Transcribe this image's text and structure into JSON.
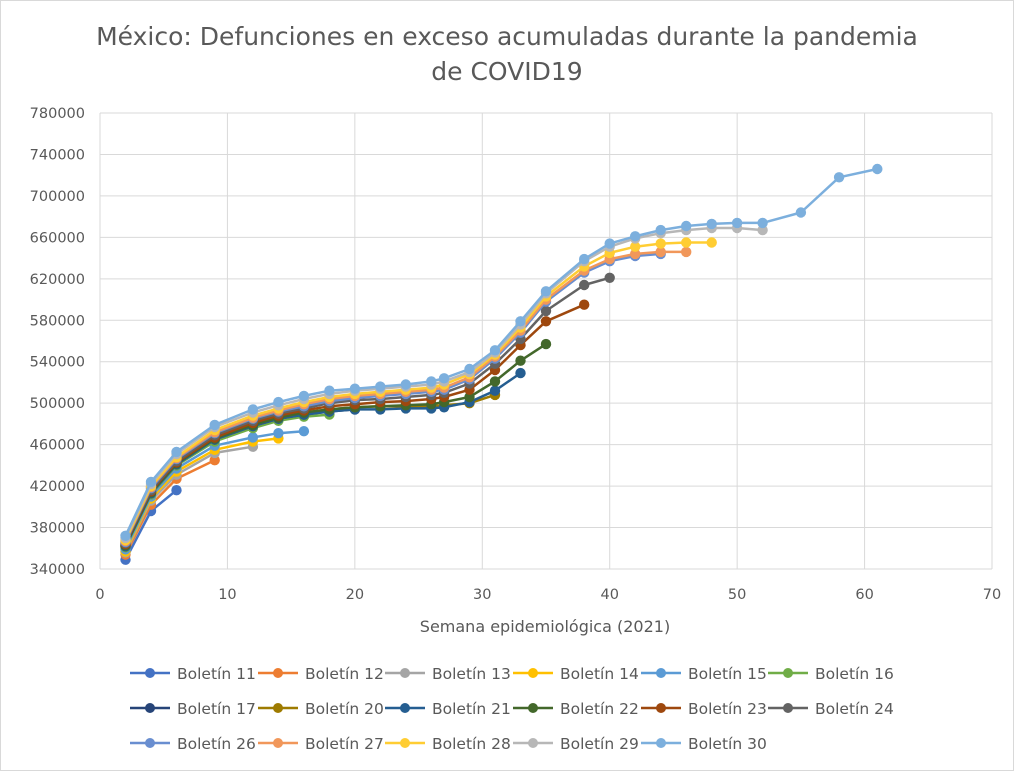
{
  "chart_data": {
    "type": "line",
    "title_line1": "México: Defunciones en exceso acumuladas durante la pandemia",
    "title_line2": "de COVID19",
    "xlabel": "Semana epidemiológica (2021)",
    "ylabel": "",
    "xlim": [
      0,
      70
    ],
    "ylim": [
      340000,
      780000
    ],
    "x_ticks": [
      "0",
      "10",
      "20",
      "30",
      "40",
      "50",
      "60",
      "70"
    ],
    "y_ticks": [
      "340000",
      "380000",
      "420000",
      "460000",
      "500000",
      "540000",
      "580000",
      "620000",
      "660000",
      "700000",
      "740000",
      "780000"
    ],
    "grid": true,
    "legend_position": "bottom",
    "series": [
      {
        "name": "Boletín 11",
        "color": "#4472c4",
        "x": [
          2,
          4,
          6
        ],
        "y": [
          349000,
          396000,
          416000
        ]
      },
      {
        "name": "Boletín 12",
        "color": "#ed7d31",
        "x": [
          2,
          4,
          6,
          9
        ],
        "y": [
          354000,
          402000,
          427000,
          445000
        ]
      },
      {
        "name": "Boletín 13",
        "color": "#a5a5a5",
        "x": [
          2,
          4,
          6,
          9,
          12
        ],
        "y": [
          356000,
          406000,
          431000,
          452000,
          458000
        ]
      },
      {
        "name": "Boletín 14",
        "color": "#ffc000",
        "x": [
          2,
          4,
          6,
          9,
          12,
          14
        ],
        "y": [
          357000,
          408000,
          434000,
          455000,
          463000,
          466000
        ]
      },
      {
        "name": "Boletín 15",
        "color": "#5b9bd5",
        "x": [
          2,
          4,
          6,
          9,
          12,
          14,
          16
        ],
        "y": [
          359000,
          410000,
          437000,
          459000,
          467000,
          471000,
          473000
        ]
      },
      {
        "name": "Boletín 16",
        "color": "#70ad47",
        "x": [
          2,
          4,
          6,
          9,
          12,
          14,
          16,
          18
        ],
        "y": [
          361000,
          412000,
          440000,
          463000,
          476000,
          483000,
          487000,
          489000
        ]
      },
      {
        "name": "Boletín 17",
        "color": "#264478",
        "x": [
          2,
          4,
          6,
          9,
          12,
          14,
          16,
          18,
          20
        ],
        "y": [
          362000,
          413000,
          441000,
          465000,
          478000,
          485000,
          489000,
          492000,
          494000
        ]
      },
      {
        "name": "Boletín 20",
        "color": "#9e7b00",
        "x": [
          2,
          4,
          6,
          9,
          12,
          14,
          16,
          18,
          20,
          22,
          24,
          26,
          27,
          29,
          31
        ],
        "y": [
          363000,
          414000,
          442000,
          466000,
          479000,
          486000,
          491000,
          494000,
          496000,
          497000,
          497000,
          497000,
          498000,
          500000,
          508000
        ]
      },
      {
        "name": "Boletín 21",
        "color": "#255e91",
        "x": [
          2,
          4,
          6,
          9,
          12,
          14,
          16,
          18,
          20,
          22,
          24,
          26,
          27,
          29,
          31,
          33
        ],
        "y": [
          362000,
          413000,
          441000,
          465000,
          478000,
          485000,
          489000,
          492000,
          494000,
          494000,
          495000,
          495000,
          496000,
          501000,
          512000,
          529000
        ]
      },
      {
        "name": "Boletín 22",
        "color": "#43682b",
        "x": [
          2,
          4,
          6,
          9,
          12,
          14,
          16,
          18,
          20,
          22,
          24,
          26,
          27,
          29,
          31,
          33,
          35
        ],
        "y": [
          363000,
          414000,
          442000,
          466000,
          479000,
          486000,
          491000,
          494000,
          496000,
          497000,
          498000,
          499000,
          501000,
          506000,
          521000,
          541000,
          557000
        ]
      },
      {
        "name": "Boletín 23",
        "color": "#9e480e",
        "x": [
          2,
          4,
          6,
          9,
          12,
          14,
          16,
          18,
          20,
          22,
          24,
          26,
          27,
          29,
          31,
          33,
          35,
          38
        ],
        "y": [
          364000,
          415000,
          443000,
          467000,
          481000,
          488000,
          493000,
          497000,
          499000,
          501000,
          502000,
          504000,
          506000,
          513000,
          532000,
          556000,
          579000,
          595000
        ]
      },
      {
        "name": "Boletín 24",
        "color": "#636363",
        "x": [
          2,
          4,
          6,
          9,
          12,
          14,
          16,
          18,
          20,
          22,
          24,
          26,
          27,
          29,
          31,
          33,
          35,
          38,
          40
        ],
        "y": [
          365000,
          416000,
          444000,
          469000,
          483000,
          490000,
          495000,
          500000,
          503000,
          504000,
          506000,
          508000,
          510000,
          519000,
          538000,
          562000,
          589000,
          614000,
          621000
        ]
      },
      {
        "name": "Boletín 26",
        "color": "#698ed0",
        "x": [
          2,
          4,
          6,
          9,
          12,
          14,
          16,
          18,
          20,
          22,
          24,
          26,
          27,
          29,
          31,
          33,
          35,
          38,
          40,
          42,
          44
        ],
        "y": [
          366000,
          418000,
          446000,
          471000,
          485000,
          492000,
          497000,
          502000,
          505000,
          507000,
          509000,
          511000,
          513000,
          523000,
          543000,
          568000,
          598000,
          626000,
          637000,
          642000,
          644000
        ]
      },
      {
        "name": "Boletín 27",
        "color": "#f1975a",
        "x": [
          2,
          4,
          6,
          9,
          12,
          14,
          16,
          18,
          20,
          22,
          24,
          26,
          27,
          29,
          31,
          33,
          35,
          38,
          40,
          42,
          44,
          46
        ],
        "y": [
          367000,
          419000,
          447000,
          472000,
          486000,
          493000,
          499000,
          504000,
          507000,
          509000,
          511000,
          513000,
          515000,
          525000,
          545000,
          570000,
          600000,
          628000,
          639000,
          644000,
          646000,
          646000
        ]
      },
      {
        "name": "Boletín 28",
        "color": "#ffcd33",
        "x": [
          2,
          4,
          6,
          9,
          12,
          14,
          16,
          18,
          20,
          22,
          24,
          26,
          27,
          29,
          31,
          33,
          35,
          38,
          40,
          42,
          44,
          46,
          48
        ],
        "y": [
          368000,
          420000,
          448000,
          474000,
          488000,
          495000,
          501000,
          506000,
          509000,
          511000,
          513000,
          515000,
          518000,
          528000,
          547000,
          573000,
          603000,
          632000,
          645000,
          651000,
          654000,
          655000,
          655000
        ]
      },
      {
        "name": "Boletín 29",
        "color": "#b7b7b7",
        "x": [
          2,
          4,
          6,
          9,
          12,
          14,
          16,
          18,
          20,
          22,
          24,
          26,
          27,
          29,
          31,
          33,
          35,
          38,
          40,
          42,
          44,
          46,
          48,
          50,
          52
        ],
        "y": [
          370000,
          422000,
          451000,
          477000,
          491000,
          498000,
          504000,
          509000,
          512000,
          514000,
          516000,
          518000,
          521000,
          530000,
          549000,
          576000,
          606000,
          637000,
          651000,
          659000,
          664000,
          667000,
          669000,
          669000,
          667000
        ]
      },
      {
        "name": "Boletín 30",
        "color": "#7cafdd",
        "x": [
          2,
          4,
          6,
          9,
          12,
          14,
          16,
          18,
          20,
          22,
          24,
          26,
          27,
          29,
          31,
          33,
          35,
          38,
          40,
          42,
          44,
          46,
          48,
          50,
          52,
          55,
          58,
          61
        ],
        "y": [
          372000,
          424000,
          453000,
          479000,
          494000,
          501000,
          507000,
          512000,
          514000,
          516000,
          518000,
          521000,
          524000,
          533000,
          551000,
          579000,
          608000,
          639000,
          654000,
          661000,
          667000,
          671000,
          673000,
          674000,
          674000,
          684000,
          718000,
          726000
        ]
      }
    ]
  }
}
